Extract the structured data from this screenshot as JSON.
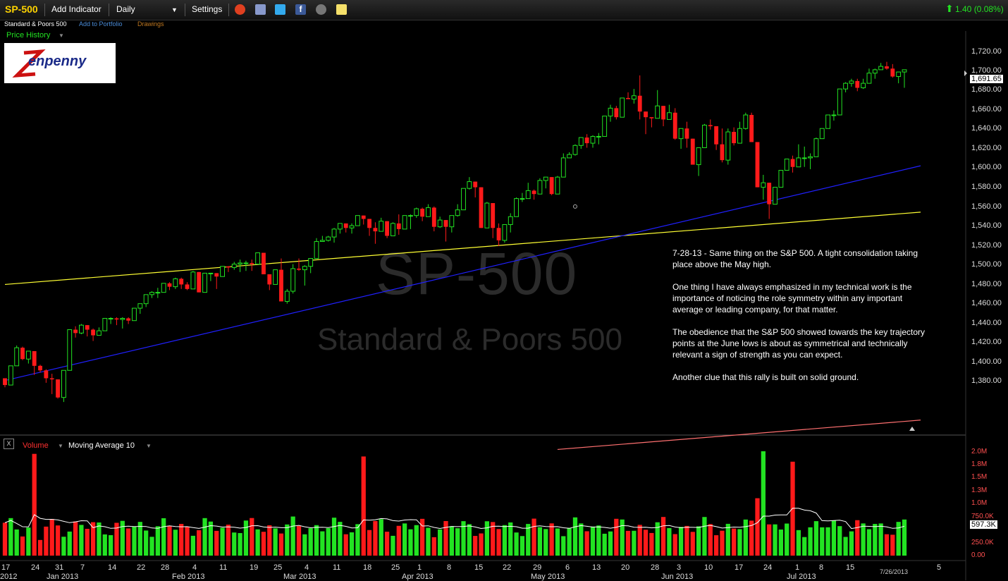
{
  "toolbar": {
    "symbol": "SP-500",
    "add_indicator": "Add Indicator",
    "interval": "Daily",
    "settings": "Settings",
    "change": "1.40 (0.08%)",
    "icons": [
      "alarm-icon",
      "book-icon",
      "twitter-icon",
      "facebook-icon",
      "binoculars-icon",
      "note-icon"
    ]
  },
  "subbar": {
    "name": "Standard & Poors 500",
    "add_to_portfolio": "Add to Portfolio",
    "drawings": "Drawings",
    "price_history": "Price History"
  },
  "watermark": {
    "symbol": "SP-500",
    "name": "Standard & Poors 500"
  },
  "logo": {
    "text": "Zenpenny"
  },
  "annotation": [
    "7-28-13 - Same thing on the S&P 500. A tight consolidation taking place above the May high.",
    "One thing I have always emphasized in my technical work is the importance of noticing the role symmetry within any important average or leading company, for that matter.",
    "The obedience that the S&P 500 showed towards the key trajectory points at the June lows is about as symmetrical and technically relevant a sign of strength as you can expect.",
    "Another clue that this rally is built on solid ground."
  ],
  "price_axis": {
    "ticks": [
      "1,720.00",
      "1,700.00",
      "1,680.00",
      "1,660.00",
      "1,640.00",
      "1,620.00",
      "1,600.00",
      "1,580.00",
      "1,560.00",
      "1,540.00",
      "1,520.00",
      "1,500.00",
      "1,480.00",
      "1,460.00",
      "1,440.00",
      "1,420.00",
      "1,400.00",
      "1,380.00"
    ],
    "last": "1,691.65"
  },
  "volume_panel": {
    "close_label": "X",
    "volume_label": "Volume",
    "ma_label": "Moving Average 10",
    "ticks": [
      "2.0M",
      "1.8M",
      "1.5M",
      "1.3M",
      "1.0M",
      "750.0K",
      "250.0K",
      "0.00"
    ],
    "last": "597.3K"
  },
  "x_axis": {
    "days": [
      "17",
      "24",
      "31",
      "7",
      "14",
      "22",
      "28",
      "4",
      "11",
      "19",
      "25",
      "4",
      "11",
      "18",
      "25",
      "1",
      "8",
      "15",
      "22",
      "29",
      "6",
      "13",
      "20",
      "28",
      "3",
      "10",
      "17",
      "24",
      "1",
      "8",
      "15",
      "5"
    ],
    "months": [
      "2012",
      "Jan 2013",
      "Feb 2013",
      "Mar 2013",
      "Apr 2013",
      "May 2013",
      "Jun 2013",
      "Jul 2013"
    ],
    "date_marker": "7/26/2013"
  },
  "colors": {
    "up": "#22e322",
    "down": "#ff1a1a",
    "yellow_line": "#ffff33",
    "blue_line": "#2020ff",
    "pink_line": "#ff7070",
    "ma_line": "#ffffff"
  },
  "chart_data": {
    "type": "candlestick",
    "ylim": [
      1370,
      1725
    ],
    "trendlines": [
      {
        "from": [
          "2012-12-14",
          1502
        ],
        "to": [
          "2013-07-30",
          1566
        ]
      },
      {
        "from": [
          "2012-12-14",
          1417
        ],
        "to": [
          "2013-07-30",
          1607
        ]
      },
      {
        "from": [
          "2013-05-02",
          1356
        ],
        "to": [
          "2013-07-30",
          1382
        ]
      }
    ],
    "ohlc": [
      [
        "2012-12-14",
        1419,
        1419,
        1411,
        1413
      ],
      [
        "2012-12-17",
        1413,
        1430,
        1413,
        1430
      ],
      [
        "2012-12-18",
        1430,
        1448,
        1430,
        1446
      ],
      [
        "2012-12-19",
        1446,
        1447,
        1435,
        1436
      ],
      [
        "2012-12-20",
        1436,
        1443,
        1432,
        1443
      ],
      [
        "2012-12-21",
        1443,
        1443,
        1422,
        1430
      ],
      [
        "2012-12-24",
        1430,
        1431,
        1424,
        1426
      ],
      [
        "2012-12-26",
        1426,
        1427,
        1415,
        1419
      ],
      [
        "2012-12-27",
        1419,
        1423,
        1405,
        1418
      ],
      [
        "2012-12-28",
        1418,
        1418,
        1401,
        1402
      ],
      [
        "2012-12-31",
        1402,
        1426,
        1398,
        1426
      ],
      [
        "2013-01-02",
        1426,
        1462,
        1426,
        1462
      ],
      [
        "2013-01-03",
        1462,
        1465,
        1455,
        1459
      ],
      [
        "2013-01-04",
        1459,
        1467,
        1458,
        1466
      ],
      [
        "2013-01-07",
        1466,
        1466,
        1456,
        1462
      ],
      [
        "2013-01-08",
        1462,
        1463,
        1452,
        1457
      ],
      [
        "2013-01-09",
        1457,
        1464,
        1457,
        1461
      ],
      [
        "2013-01-10",
        1461,
        1472,
        1461,
        1472
      ],
      [
        "2013-01-11",
        1472,
        1473,
        1467,
        1472
      ],
      [
        "2013-01-14",
        1472,
        1473,
        1466,
        1471
      ],
      [
        "2013-01-15",
        1471,
        1473,
        1463,
        1472
      ],
      [
        "2013-01-16",
        1472,
        1473,
        1467,
        1470
      ],
      [
        "2013-01-17",
        1470,
        1481,
        1470,
        1481
      ],
      [
        "2013-01-18",
        1481,
        1485,
        1476,
        1485
      ],
      [
        "2013-01-22",
        1485,
        1493,
        1482,
        1493
      ],
      [
        "2013-01-23",
        1493,
        1496,
        1490,
        1495
      ],
      [
        "2013-01-24",
        1495,
        1499,
        1490,
        1495
      ],
      [
        "2013-01-25",
        1495,
        1503,
        1495,
        1503
      ],
      [
        "2013-01-28",
        1503,
        1504,
        1497,
        1500
      ],
      [
        "2013-01-29",
        1500,
        1508,
        1498,
        1507
      ],
      [
        "2013-01-30",
        1507,
        1508,
        1498,
        1502
      ],
      [
        "2013-01-31",
        1502,
        1504,
        1497,
        1498
      ],
      [
        "2013-02-01",
        1498,
        1514,
        1498,
        1513
      ],
      [
        "2013-02-04",
        1513,
        1513,
        1495,
        1495
      ],
      [
        "2013-02-05",
        1495,
        1512,
        1495,
        1512
      ],
      [
        "2013-02-06",
        1512,
        1512,
        1505,
        1512
      ],
      [
        "2013-02-07",
        1512,
        1512,
        1498,
        1509
      ],
      [
        "2013-02-08",
        1509,
        1518,
        1509,
        1518
      ],
      [
        "2013-02-11",
        1518,
        1518,
        1513,
        1517
      ],
      [
        "2013-02-12",
        1517,
        1522,
        1515,
        1520
      ],
      [
        "2013-02-13",
        1520,
        1524,
        1513,
        1521
      ],
      [
        "2013-02-14",
        1521,
        1523,
        1514,
        1521
      ],
      [
        "2013-02-15",
        1521,
        1524,
        1514,
        1520
      ],
      [
        "2013-02-19",
        1520,
        1530,
        1520,
        1530
      ],
      [
        "2013-02-20",
        1530,
        1530,
        1511,
        1511
      ],
      [
        "2013-02-21",
        1511,
        1511,
        1497,
        1502
      ],
      [
        "2013-02-22",
        1502,
        1515,
        1502,
        1515
      ],
      [
        "2013-02-25",
        1515,
        1525,
        1487,
        1487
      ],
      [
        "2013-02-26",
        1487,
        1498,
        1485,
        1496
      ],
      [
        "2013-02-27",
        1496,
        1520,
        1494,
        1516
      ],
      [
        "2013-02-28",
        1516,
        1525,
        1514,
        1515
      ],
      [
        "2013-03-01",
        1515,
        1519,
        1501,
        1518
      ],
      [
        "2013-03-04",
        1518,
        1525,
        1512,
        1525
      ],
      [
        "2013-03-05",
        1525,
        1543,
        1525,
        1540
      ],
      [
        "2013-03-06",
        1540,
        1545,
        1540,
        1541
      ],
      [
        "2013-03-07",
        1541,
        1545,
        1540,
        1544
      ],
      [
        "2013-03-08",
        1544,
        1552,
        1539,
        1551
      ],
      [
        "2013-03-11",
        1551,
        1556,
        1547,
        1556
      ],
      [
        "2013-03-12",
        1556,
        1556,
        1548,
        1552
      ],
      [
        "2013-03-13",
        1552,
        1556,
        1547,
        1554
      ],
      [
        "2013-03-14",
        1554,
        1563,
        1554,
        1563
      ],
      [
        "2013-03-15",
        1563,
        1563,
        1555,
        1560
      ],
      [
        "2013-03-18",
        1560,
        1560,
        1545,
        1552
      ],
      [
        "2013-03-19",
        1552,
        1557,
        1538,
        1549
      ],
      [
        "2013-03-20",
        1549,
        1561,
        1549,
        1558
      ],
      [
        "2013-03-21",
        1558,
        1558,
        1543,
        1545
      ],
      [
        "2013-03-22",
        1545,
        1557,
        1545,
        1556
      ],
      [
        "2013-03-25",
        1556,
        1564,
        1546,
        1551
      ],
      [
        "2013-03-26",
        1551,
        1563,
        1551,
        1563
      ],
      [
        "2013-03-27",
        1563,
        1564,
        1551,
        1563
      ],
      [
        "2013-03-28",
        1563,
        1570,
        1561,
        1569
      ],
      [
        "2013-04-01",
        1569,
        1570,
        1558,
        1562
      ],
      [
        "2013-04-02",
        1562,
        1573,
        1562,
        1570
      ],
      [
        "2013-04-03",
        1570,
        1571,
        1549,
        1553
      ],
      [
        "2013-04-04",
        1553,
        1562,
        1552,
        1559
      ],
      [
        "2013-04-05",
        1559,
        1559,
        1540,
        1553
      ],
      [
        "2013-04-08",
        1553,
        1563,
        1548,
        1563
      ],
      [
        "2013-04-09",
        1563,
        1573,
        1562,
        1568
      ],
      [
        "2013-04-10",
        1568,
        1587,
        1568,
        1587
      ],
      [
        "2013-04-11",
        1587,
        1597,
        1586,
        1593
      ],
      [
        "2013-04-12",
        1593,
        1593,
        1579,
        1588
      ],
      [
        "2013-04-15",
        1588,
        1588,
        1552,
        1552
      ],
      [
        "2013-04-16",
        1552,
        1575,
        1552,
        1574
      ],
      [
        "2013-04-17",
        1574,
        1574,
        1543,
        1552
      ],
      [
        "2013-04-18",
        1552,
        1556,
        1536,
        1541
      ],
      [
        "2013-04-19",
        1541,
        1555,
        1539,
        1555
      ],
      [
        "2013-04-22",
        1555,
        1565,
        1548,
        1562
      ],
      [
        "2013-04-23",
        1562,
        1579,
        1562,
        1578
      ],
      [
        "2013-04-24",
        1578,
        1583,
        1575,
        1578
      ],
      [
        "2013-04-25",
        1578,
        1592,
        1578,
        1585
      ],
      [
        "2013-04-26",
        1585,
        1586,
        1577,
        1582
      ],
      [
        "2013-04-29",
        1582,
        1596,
        1582,
        1594
      ],
      [
        "2013-04-30",
        1594,
        1597,
        1587,
        1597
      ],
      [
        "2013-05-01",
        1597,
        1597,
        1581,
        1582
      ],
      [
        "2013-05-02",
        1582,
        1598,
        1582,
        1597
      ],
      [
        "2013-05-03",
        1597,
        1618,
        1597,
        1614
      ],
      [
        "2013-05-06",
        1614,
        1619,
        1614,
        1617
      ],
      [
        "2013-05-07",
        1617,
        1626,
        1616,
        1625
      ],
      [
        "2013-05-08",
        1625,
        1632,
        1622,
        1632
      ],
      [
        "2013-05-09",
        1632,
        1635,
        1623,
        1627
      ],
      [
        "2013-05-10",
        1627,
        1634,
        1623,
        1633
      ],
      [
        "2013-05-13",
        1633,
        1636,
        1626,
        1633
      ],
      [
        "2013-05-14",
        1633,
        1651,
        1633,
        1651
      ],
      [
        "2013-05-15",
        1651,
        1661,
        1646,
        1658
      ],
      [
        "2013-05-16",
        1658,
        1660,
        1648,
        1650
      ],
      [
        "2013-05-17",
        1650,
        1667,
        1650,
        1667
      ],
      [
        "2013-05-20",
        1667,
        1672,
        1666,
        1666
      ],
      [
        "2013-05-21",
        1666,
        1675,
        1662,
        1669
      ],
      [
        "2013-05-22",
        1669,
        1687,
        1648,
        1655
      ],
      [
        "2013-05-23",
        1655,
        1655,
        1635,
        1650
      ],
      [
        "2013-05-24",
        1650,
        1650,
        1641,
        1649
      ],
      [
        "2013-05-28",
        1649,
        1674,
        1649,
        1660
      ],
      [
        "2013-05-29",
        1660,
        1660,
        1642,
        1648
      ],
      [
        "2013-05-30",
        1648,
        1661,
        1648,
        1654
      ],
      [
        "2013-05-31",
        1654,
        1658,
        1630,
        1631
      ],
      [
        "2013-06-03",
        1631,
        1640,
        1622,
        1640
      ],
      [
        "2013-06-04",
        1640,
        1646,
        1623,
        1631
      ],
      [
        "2013-06-05",
        1631,
        1631,
        1608,
        1608
      ],
      [
        "2013-06-06",
        1608,
        1623,
        1598,
        1623
      ],
      [
        "2013-06-07",
        1623,
        1644,
        1623,
        1643
      ],
      [
        "2013-06-10",
        1643,
        1648,
        1639,
        1642
      ],
      [
        "2013-06-11",
        1642,
        1642,
        1621,
        1626
      ],
      [
        "2013-06-12",
        1626,
        1640,
        1610,
        1612
      ],
      [
        "2013-06-13",
        1612,
        1640,
        1608,
        1637
      ],
      [
        "2013-06-14",
        1637,
        1641,
        1625,
        1627
      ],
      [
        "2013-06-17",
        1627,
        1646,
        1627,
        1640
      ],
      [
        "2013-06-18",
        1640,
        1654,
        1639,
        1652
      ],
      [
        "2013-06-19",
        1652,
        1654,
        1628,
        1628
      ],
      [
        "2013-06-20",
        1628,
        1628,
        1588,
        1588
      ],
      [
        "2013-06-21",
        1588,
        1599,
        1577,
        1592
      ],
      [
        "2013-06-24",
        1592,
        1592,
        1560,
        1573
      ],
      [
        "2013-06-25",
        1573,
        1587,
        1573,
        1588
      ],
      [
        "2013-06-26",
        1588,
        1600,
        1588,
        1603
      ],
      [
        "2013-06-27",
        1603,
        1613,
        1603,
        1613
      ],
      [
        "2013-06-28",
        1613,
        1616,
        1601,
        1606
      ],
      [
        "2013-07-01",
        1606,
        1626,
        1606,
        1614
      ],
      [
        "2013-07-02",
        1614,
        1624,
        1606,
        1614
      ],
      [
        "2013-07-03",
        1614,
        1618,
        1604,
        1615
      ],
      [
        "2013-07-05",
        1615,
        1632,
        1615,
        1631
      ],
      [
        "2013-07-08",
        1631,
        1640,
        1631,
        1640
      ],
      [
        "2013-07-09",
        1640,
        1652,
        1640,
        1652
      ],
      [
        "2013-07-10",
        1652,
        1656,
        1647,
        1652
      ],
      [
        "2013-07-11",
        1652,
        1675,
        1652,
        1675
      ],
      [
        "2013-07-12",
        1675,
        1681,
        1672,
        1680
      ],
      [
        "2013-07-15",
        1680,
        1684,
        1677,
        1682
      ],
      [
        "2013-07-16",
        1682,
        1684,
        1673,
        1676
      ],
      [
        "2013-07-17",
        1676,
        1684,
        1675,
        1680
      ],
      [
        "2013-07-18",
        1680,
        1693,
        1680,
        1689
      ],
      [
        "2013-07-19",
        1689,
        1693,
        1684,
        1692
      ],
      [
        "2013-07-22",
        1692,
        1698,
        1692,
        1695
      ],
      [
        "2013-07-23",
        1695,
        1699,
        1692,
        1693
      ],
      [
        "2013-07-24",
        1693,
        1697,
        1685,
        1686
      ],
      [
        "2013-07-25",
        1686,
        1690,
        1680,
        1690
      ],
      [
        "2013-07-26",
        1690,
        1692,
        1676,
        1692
      ]
    ]
  }
}
